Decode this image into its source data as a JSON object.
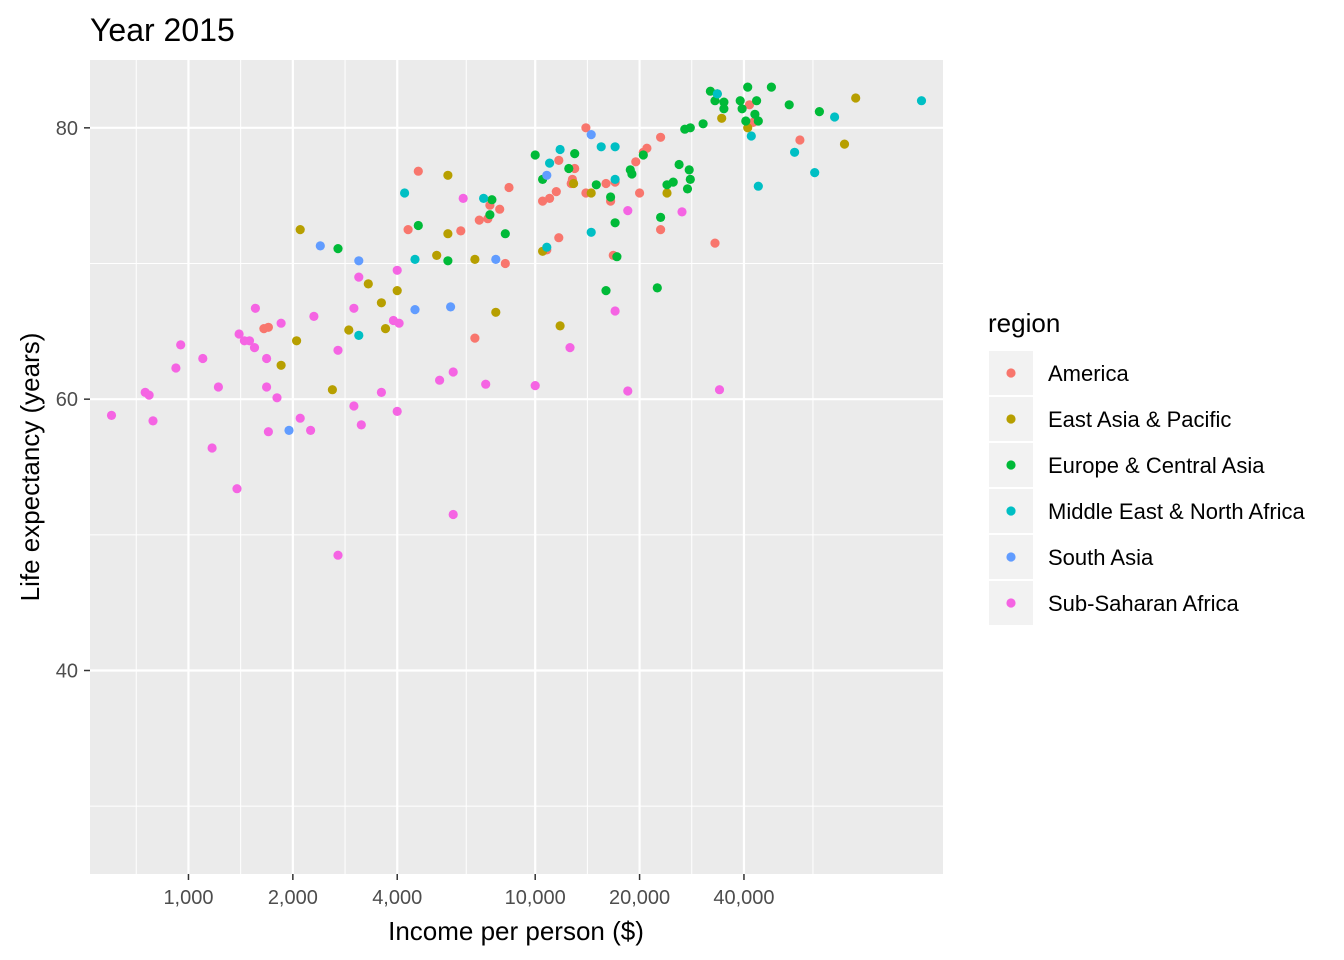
{
  "chart_data": {
    "type": "scatter",
    "title": "Year 2015",
    "xlabel": "Income per person ($)",
    "ylabel": "Life expectancy (years)",
    "x_scale": "log10",
    "xlim": [
      520,
      150000
    ],
    "ylim": [
      25,
      85
    ],
    "x_ticks": [
      {
        "value": 1000,
        "label": "1,000"
      },
      {
        "value": 2000,
        "label": "2,000"
      },
      {
        "value": 4000,
        "label": "4,000"
      },
      {
        "value": 10000,
        "label": "10,000"
      },
      {
        "value": 20000,
        "label": "20,000"
      },
      {
        "value": 40000,
        "label": "40,000"
      }
    ],
    "y_ticks": [
      {
        "value": 40,
        "label": "40"
      },
      {
        "value": 60,
        "label": "60"
      },
      {
        "value": 80,
        "label": "80"
      }
    ],
    "grid": true,
    "legend": {
      "title": "region",
      "position": "right"
    },
    "series": [
      {
        "name": "America",
        "color": "#F8766D",
        "points": [
          [
            14000,
            80.0
          ],
          [
            41500,
            81.7
          ],
          [
            42500,
            80.4
          ],
          [
            58000,
            79.1
          ],
          [
            23000,
            79.3
          ],
          [
            21000,
            78.5
          ],
          [
            20500,
            78.2
          ],
          [
            19500,
            77.5
          ],
          [
            17000,
            76.0
          ],
          [
            16000,
            75.9
          ],
          [
            16500,
            74.6
          ],
          [
            14000,
            75.2
          ],
          [
            12700,
            75.9
          ],
          [
            12800,
            76.2
          ],
          [
            13000,
            77.0
          ],
          [
            11700,
            77.6
          ],
          [
            11500,
            75.3
          ],
          [
            11000,
            74.8
          ],
          [
            10500,
            74.6
          ],
          [
            10800,
            71.0
          ],
          [
            11700,
            71.9
          ],
          [
            8400,
            75.6
          ],
          [
            7900,
            74.0
          ],
          [
            7400,
            74.3
          ],
          [
            7300,
            73.3
          ],
          [
            6900,
            73.2
          ],
          [
            8200,
            70.0
          ],
          [
            6100,
            72.4
          ],
          [
            6700,
            64.5
          ],
          [
            4300,
            72.5
          ],
          [
            4600,
            76.8
          ],
          [
            20000,
            75.2
          ],
          [
            23000,
            72.5
          ],
          [
            33000,
            71.5
          ],
          [
            16800,
            70.6
          ],
          [
            1700,
            65.3
          ],
          [
            1650,
            65.2
          ]
        ]
      },
      {
        "name": "East Asia & Pacific",
        "color": "#B79F00",
        "points": [
          [
            84000,
            82.2
          ],
          [
            78000,
            78.8
          ],
          [
            34500,
            80.7
          ],
          [
            41000,
            80.0
          ],
          [
            24000,
            75.2
          ],
          [
            14500,
            75.2
          ],
          [
            12900,
            75.9
          ],
          [
            11800,
            65.4
          ],
          [
            10500,
            70.9
          ],
          [
            7700,
            66.4
          ],
          [
            6700,
            70.3
          ],
          [
            5600,
            72.2
          ],
          [
            5200,
            70.6
          ],
          [
            5600,
            76.5
          ],
          [
            4000,
            68.0
          ],
          [
            3700,
            65.2
          ],
          [
            3600,
            67.1
          ],
          [
            3300,
            68.5
          ],
          [
            2900,
            65.1
          ],
          [
            2600,
            60.7
          ],
          [
            2050,
            64.3
          ],
          [
            1850,
            62.5
          ],
          [
            2100,
            72.5
          ]
        ]
      },
      {
        "name": "Europe & Central Asia",
        "color": "#00BA38",
        "points": [
          [
            32000,
            82.7
          ],
          [
            33500,
            82.5
          ],
          [
            33000,
            82.0
          ],
          [
            35000,
            81.4
          ],
          [
            35000,
            81.9
          ],
          [
            39000,
            82.0
          ],
          [
            39500,
            81.4
          ],
          [
            40500,
            80.5
          ],
          [
            41000,
            83.0
          ],
          [
            43000,
            81.0
          ],
          [
            44000,
            80.5
          ],
          [
            43500,
            82.0
          ],
          [
            48000,
            83.0
          ],
          [
            54000,
            81.7
          ],
          [
            66000,
            81.2
          ],
          [
            30500,
            80.3
          ],
          [
            28000,
            80.0
          ],
          [
            27000,
            79.9
          ],
          [
            20500,
            78.0
          ],
          [
            19000,
            76.6
          ],
          [
            18800,
            76.9
          ],
          [
            26000,
            77.3
          ],
          [
            25000,
            76.0
          ],
          [
            27800,
            76.9
          ],
          [
            28000,
            76.2
          ],
          [
            27500,
            75.5
          ],
          [
            24000,
            75.8
          ],
          [
            23000,
            73.4
          ],
          [
            22500,
            68.2
          ],
          [
            17000,
            73.0
          ],
          [
            16500,
            74.9
          ],
          [
            15000,
            75.8
          ],
          [
            12500,
            77.0
          ],
          [
            13000,
            78.1
          ],
          [
            10000,
            78.0
          ],
          [
            10500,
            76.2
          ],
          [
            8200,
            72.2
          ],
          [
            7500,
            74.7
          ],
          [
            7400,
            73.6
          ],
          [
            4600,
            72.8
          ],
          [
            5600,
            70.2
          ],
          [
            2700,
            71.1
          ],
          [
            16000,
            68.0
          ],
          [
            17200,
            70.5
          ]
        ]
      },
      {
        "name": "Middle East & North Africa",
        "color": "#00BFC4",
        "points": [
          [
            130000,
            82.0
          ],
          [
            73000,
            80.8
          ],
          [
            33500,
            82.5
          ],
          [
            42000,
            79.4
          ],
          [
            56000,
            78.2
          ],
          [
            64000,
            76.7
          ],
          [
            44000,
            75.7
          ],
          [
            17000,
            78.6
          ],
          [
            15500,
            78.6
          ],
          [
            17000,
            76.2
          ],
          [
            14500,
            72.3
          ],
          [
            11800,
            78.4
          ],
          [
            11000,
            77.4
          ],
          [
            10800,
            71.2
          ],
          [
            7100,
            74.8
          ],
          [
            4200,
            75.2
          ],
          [
            4500,
            70.3
          ],
          [
            3100,
            64.7
          ]
        ]
      },
      {
        "name": "South Asia",
        "color": "#619CFF",
        "points": [
          [
            14500,
            79.5
          ],
          [
            10800,
            76.5
          ],
          [
            7700,
            70.3
          ],
          [
            5700,
            66.8
          ],
          [
            4500,
            66.6
          ],
          [
            3100,
            70.2
          ],
          [
            2400,
            71.3
          ],
          [
            1950,
            57.7
          ]
        ]
      },
      {
        "name": "Sub-Saharan Africa",
        "color": "#F564E3",
        "points": [
          [
            600,
            58.8
          ],
          [
            750,
            60.5
          ],
          [
            770,
            60.3
          ],
          [
            790,
            58.4
          ],
          [
            920,
            62.3
          ],
          [
            950,
            64.0
          ],
          [
            1100,
            63.0
          ],
          [
            1170,
            56.4
          ],
          [
            1220,
            60.9
          ],
          [
            1380,
            53.4
          ],
          [
            1400,
            64.8
          ],
          [
            1450,
            64.3
          ],
          [
            1500,
            64.3
          ],
          [
            1550,
            63.8
          ],
          [
            1560,
            66.7
          ],
          [
            1680,
            60.9
          ],
          [
            1680,
            63.0
          ],
          [
            1700,
            57.6
          ],
          [
            1800,
            60.1
          ],
          [
            1850,
            65.6
          ],
          [
            2100,
            58.6
          ],
          [
            2250,
            57.7
          ],
          [
            2300,
            66.1
          ],
          [
            2700,
            63.6
          ],
          [
            2700,
            48.5
          ],
          [
            3000,
            66.7
          ],
          [
            3000,
            59.5
          ],
          [
            3150,
            58.1
          ],
          [
            3100,
            69.0
          ],
          [
            3600,
            60.5
          ],
          [
            3900,
            65.8
          ],
          [
            4000,
            69.5
          ],
          [
            4050,
            65.6
          ],
          [
            4000,
            59.1
          ],
          [
            5300,
            61.4
          ],
          [
            5800,
            62.0
          ],
          [
            5800,
            51.5
          ],
          [
            6200,
            74.8
          ],
          [
            7200,
            61.1
          ],
          [
            10000,
            61.0
          ],
          [
            12600,
            63.8
          ],
          [
            17000,
            66.5
          ],
          [
            18500,
            73.9
          ],
          [
            18500,
            60.6
          ],
          [
            26500,
            73.8
          ],
          [
            34000,
            60.7
          ]
        ]
      }
    ]
  }
}
